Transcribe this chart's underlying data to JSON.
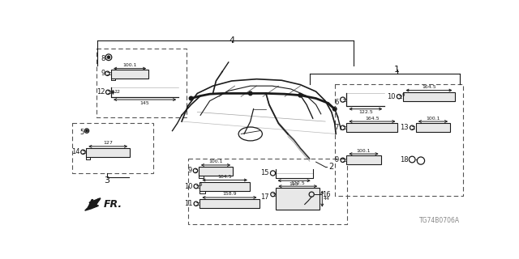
{
  "bg_color": "#ffffff",
  "line_color": "#1a1a1a",
  "dashed_color": "#555555",
  "watermark": "TG74B0706A",
  "figsize": [
    6.4,
    3.2
  ],
  "dpi": 100
}
